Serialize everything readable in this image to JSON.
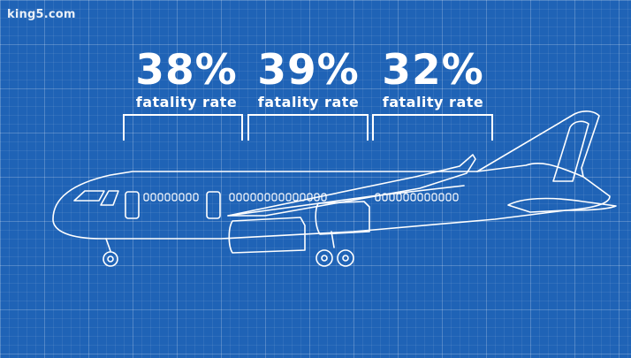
{
  "watermark": "king5.com",
  "stats": [
    {
      "value": "38%",
      "label": "fatality rate"
    },
    {
      "value": "39%",
      "label": "fatality rate"
    },
    {
      "value": "32%",
      "label": "fatality rate"
    }
  ],
  "colors": {
    "background": "#1f63b6",
    "line": "#ffffff"
  }
}
